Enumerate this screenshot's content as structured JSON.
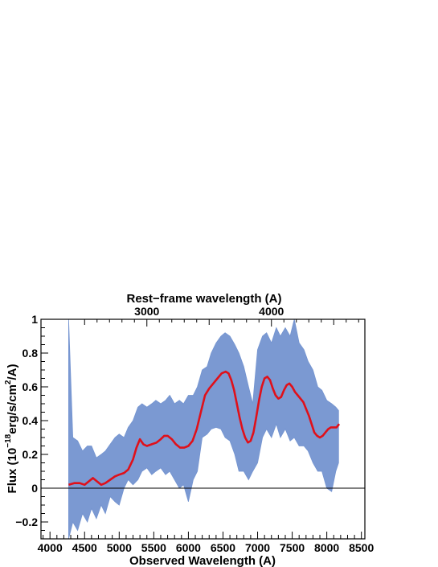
{
  "chart_data": {
    "type": "line",
    "xlabel": "Observed Wavelength (A)",
    "ylabel_prefix": "Flux (10",
    "ylabel_exp1": "−18",
    "ylabel_mid": "erg/s/cm",
    "ylabel_exp2": "2",
    "ylabel_suffix": "/A)",
    "top_xlabel": "Rest−frame wavelength (A)",
    "xlim": [
      3870,
      8550
    ],
    "ylim": [
      -0.3,
      1.0
    ],
    "x_ticks": [
      4000,
      4500,
      5000,
      5500,
      6000,
      6500,
      7000,
      7500,
      8000,
      8500
    ],
    "y_ticks": [
      {
        "value": -0.2,
        "label": "−0.2"
      },
      {
        "value": 0,
        "label": "0"
      },
      {
        "value": 0.2,
        "label": "0.2"
      },
      {
        "value": 0.4,
        "label": "0.4"
      },
      {
        "value": 0.6,
        "label": "0.6"
      },
      {
        "value": 0.8,
        "label": "0.8"
      },
      {
        "value": 1.0,
        "label": "1"
      }
    ],
    "top_ticks": [
      {
        "observed": 5400,
        "label": "3000"
      },
      {
        "observed": 7200,
        "label": "4000"
      }
    ],
    "zero_line": 0,
    "series": [
      {
        "role": "observed-spectrum-envelope",
        "color": "#7494d0",
        "x": [
          4270,
          4330,
          4400,
          4470,
          4540,
          4600,
          4670,
          4740,
          4800,
          4870,
          4940,
          5000,
          5070,
          5130,
          5200,
          5270,
          5330,
          5400,
          5470,
          5530,
          5600,
          5670,
          5730,
          5800,
          5870,
          5930,
          6000,
          6070,
          6130,
          6200,
          6270,
          6330,
          6400,
          6470,
          6530,
          6600,
          6670,
          6730,
          6800,
          6870,
          6930,
          7000,
          7070,
          7130,
          7200,
          7270,
          7330,
          7400,
          7470,
          7530,
          7600,
          7670,
          7730,
          7800,
          7870,
          7930,
          8000,
          8070,
          8130,
          8170
        ],
        "upper": [
          1.0,
          0.3,
          0.28,
          0.22,
          0.25,
          0.25,
          0.18,
          0.2,
          0.22,
          0.26,
          0.3,
          0.32,
          0.3,
          0.36,
          0.4,
          0.48,
          0.5,
          0.48,
          0.5,
          0.52,
          0.5,
          0.52,
          0.55,
          0.5,
          0.52,
          0.5,
          0.55,
          0.55,
          0.6,
          0.7,
          0.72,
          0.8,
          0.86,
          0.9,
          0.92,
          0.9,
          0.85,
          0.8,
          0.72,
          0.6,
          0.5,
          0.82,
          0.9,
          0.92,
          0.86,
          0.95,
          0.9,
          0.95,
          0.9,
          1.0,
          0.86,
          0.82,
          0.75,
          0.7,
          0.6,
          0.58,
          0.52,
          0.5,
          0.48,
          0.46
        ],
        "lower": [
          -0.3,
          -0.2,
          -0.25,
          -0.15,
          -0.2,
          -0.12,
          -0.18,
          -0.1,
          -0.15,
          -0.05,
          -0.08,
          -0.1,
          0.0,
          0.05,
          0.02,
          0.05,
          0.1,
          0.12,
          0.08,
          0.1,
          0.12,
          0.08,
          0.1,
          0.05,
          0.0,
          0.02,
          -0.08,
          0.05,
          0.1,
          0.3,
          0.32,
          0.35,
          0.36,
          0.35,
          0.3,
          0.28,
          0.2,
          0.1,
          0.1,
          0.05,
          0.1,
          0.15,
          0.3,
          0.35,
          0.3,
          0.38,
          0.3,
          0.35,
          0.28,
          0.3,
          0.25,
          0.25,
          0.22,
          0.15,
          0.1,
          0.1,
          0.0,
          -0.02,
          0.1,
          0.15
        ]
      },
      {
        "role": "smoothed-fit",
        "color": "#e0101a",
        "x": [
          4270,
          4350,
          4430,
          4500,
          4560,
          4620,
          4680,
          4740,
          4800,
          4870,
          4940,
          5000,
          5070,
          5130,
          5200,
          5250,
          5300,
          5350,
          5400,
          5470,
          5540,
          5600,
          5650,
          5700,
          5760,
          5820,
          5880,
          5940,
          6000,
          6060,
          6120,
          6180,
          6240,
          6300,
          6360,
          6420,
          6480,
          6540,
          6580,
          6620,
          6660,
          6700,
          6740,
          6780,
          6820,
          6860,
          6900,
          6940,
          6980,
          7020,
          7060,
          7100,
          7140,
          7180,
          7220,
          7260,
          7300,
          7340,
          7380,
          7420,
          7460,
          7500,
          7540,
          7580,
          7620,
          7660,
          7700,
          7740,
          7780,
          7820,
          7860,
          7900,
          7940,
          7980,
          8020,
          8060,
          8100,
          8140,
          8180
        ],
        "y": [
          0.02,
          0.03,
          0.03,
          0.02,
          0.04,
          0.06,
          0.04,
          0.02,
          0.03,
          0.05,
          0.07,
          0.08,
          0.09,
          0.11,
          0.17,
          0.24,
          0.29,
          0.26,
          0.25,
          0.26,
          0.27,
          0.29,
          0.31,
          0.31,
          0.29,
          0.26,
          0.24,
          0.24,
          0.25,
          0.28,
          0.35,
          0.45,
          0.55,
          0.59,
          0.62,
          0.65,
          0.68,
          0.69,
          0.68,
          0.64,
          0.58,
          0.5,
          0.42,
          0.35,
          0.3,
          0.27,
          0.28,
          0.33,
          0.42,
          0.52,
          0.6,
          0.65,
          0.66,
          0.64,
          0.59,
          0.55,
          0.53,
          0.54,
          0.58,
          0.61,
          0.62,
          0.6,
          0.57,
          0.55,
          0.53,
          0.51,
          0.47,
          0.43,
          0.38,
          0.33,
          0.31,
          0.3,
          0.31,
          0.33,
          0.35,
          0.36,
          0.36,
          0.36,
          0.38
        ]
      }
    ]
  }
}
